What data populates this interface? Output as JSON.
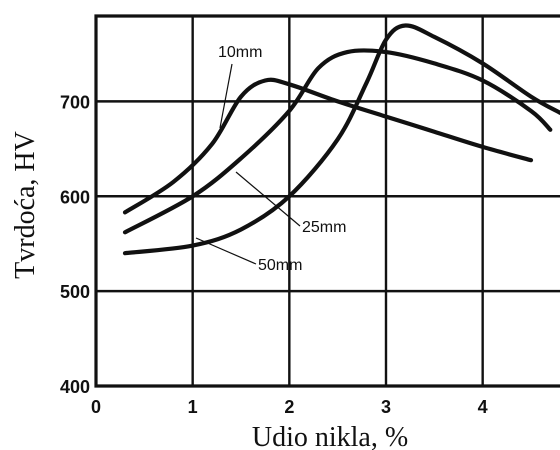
{
  "chart_data": {
    "type": "line",
    "xlabel": "Udio nikla, %",
    "ylabel": "Tvrdoća, HV",
    "xlim": [
      0,
      4.8
    ],
    "ylim": [
      400,
      790
    ],
    "x_ticks": [
      "0",
      "1",
      "2",
      "3",
      "4"
    ],
    "y_ticks": [
      "400",
      "500",
      "600",
      "700"
    ],
    "grid": true,
    "series": [
      {
        "name": "10mm",
        "x": [
          0.3,
          0.8,
          1.2,
          1.5,
          1.75,
          2.0,
          2.5,
          3.0,
          3.5,
          4.0,
          4.5
        ],
        "y": [
          583,
          615,
          655,
          705,
          722,
          718,
          700,
          684,
          668,
          652,
          638
        ]
      },
      {
        "name": "25mm",
        "x": [
          0.3,
          1.0,
          1.5,
          2.0,
          2.3,
          2.6,
          3.0,
          3.5,
          4.0,
          4.5,
          4.7
        ],
        "y": [
          562,
          600,
          640,
          690,
          735,
          752,
          752,
          740,
          722,
          690,
          670
        ]
      },
      {
        "name": "50mm",
        "x": [
          0.3,
          1.0,
          1.5,
          2.0,
          2.5,
          2.8,
          3.0,
          3.2,
          3.5,
          4.0,
          4.5,
          4.8
        ],
        "y": [
          540,
          548,
          565,
          600,
          660,
          720,
          765,
          780,
          768,
          740,
          705,
          688
        ]
      }
    ]
  }
}
